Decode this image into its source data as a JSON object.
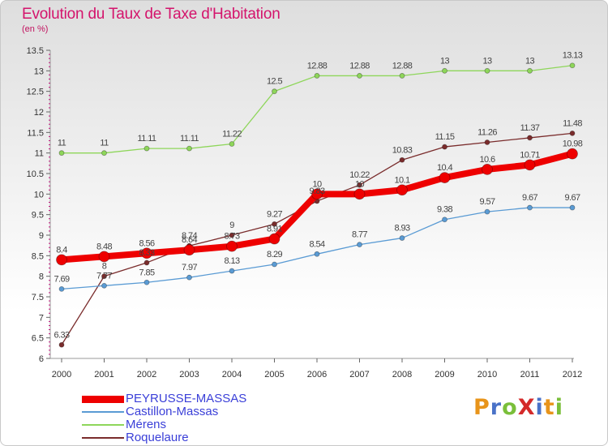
{
  "title": "Evolution du Taux de Taxe d'Habitation",
  "unit_label": "(en %)",
  "brand": "ProXiti",
  "colors": {
    "title": "#d4146c",
    "brand_letters": [
      "#e8941a",
      "#4a72c8",
      "#7abf3a",
      "#d42a2a",
      "#4a72c8",
      "#e8941a",
      "#7abf3a"
    ]
  },
  "chart_data": {
    "type": "line",
    "title": "Evolution du Taux de Taxe d'Habitation",
    "ylabel": "(en %)",
    "x": [
      "2000",
      "2001",
      "2002",
      "2003",
      "2004",
      "2005",
      "2006",
      "2007",
      "2008",
      "2009",
      "2010",
      "2011",
      "2012"
    ],
    "ylim": [
      6,
      13.5
    ],
    "yticks": [
      "6",
      "6.5",
      "7",
      "7.5",
      "8",
      "8.5",
      "9",
      "9.5",
      "10",
      "10.5",
      "11",
      "11.5",
      "12",
      "12.5",
      "13",
      "13.5"
    ],
    "grid": false,
    "legend_position": "bottom-left",
    "series": [
      {
        "name": "PEYRUSSE-MASSAS",
        "color": "#ee0000",
        "values": [
          8.4,
          8.48,
          8.56,
          8.64,
          8.73,
          8.91,
          10,
          10,
          10.1,
          10.4,
          10.6,
          10.71,
          10.98
        ],
        "labels": [
          "8.4",
          "8.48",
          "8.56",
          "8.64",
          "8.73",
          "8.91",
          "10",
          "10",
          "10.1",
          "10.4",
          "10.6",
          "10.71",
          "10.98"
        ]
      },
      {
        "name": "Castillon-Massas",
        "color": "#5a9bd4",
        "values": [
          7.69,
          7.77,
          7.85,
          7.97,
          8.13,
          8.29,
          8.54,
          8.77,
          8.93,
          9.38,
          9.57,
          9.67,
          9.67
        ],
        "labels": [
          "7.69",
          "7.77",
          "7.85",
          "7.97",
          "8.13",
          "8.29",
          "8.54",
          "8.77",
          "8.93",
          "9.38",
          "9.57",
          "9.67",
          "9.67"
        ]
      },
      {
        "name": "Mérens",
        "color": "#8ed65a",
        "values": [
          11,
          11,
          11.11,
          11.11,
          11.22,
          12.5,
          12.88,
          12.88,
          12.88,
          13,
          13,
          13,
          13.13
        ],
        "labels": [
          "11",
          "11",
          "11.11",
          "11.11",
          "11.22",
          "12.5",
          "12.88",
          "12.88",
          "12.88",
          "13",
          "13",
          "13",
          "13.13"
        ]
      },
      {
        "name": "Roquelaure",
        "color": "#7a2c2c",
        "values": [
          6.33,
          8,
          8.33,
          8.74,
          9,
          9.27,
          9.83,
          10.22,
          10.83,
          11.15,
          11.26,
          11.37,
          11.48
        ],
        "labels": [
          "6.33",
          "8",
          "8.33",
          "8.74",
          "9",
          "9.27",
          "9.83",
          "10.22",
          "10.83",
          "11.15",
          "11.26",
          "11.37",
          "11.48"
        ]
      }
    ]
  }
}
